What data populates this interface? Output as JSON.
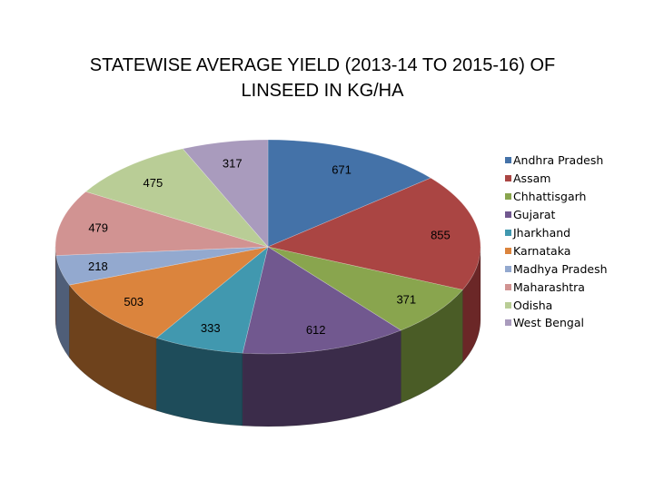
{
  "chart_data": {
    "type": "pie",
    "title": "STATEWISE AVERAGE YIELD (2013-14 TO 2015-16) OF LINSEED IN KG/HA",
    "slices": [
      {
        "label": "Andhra Pradesh",
        "value": 671,
        "color": "#4472A8",
        "side": "#2A4A70"
      },
      {
        "label": "Assam",
        "value": 855,
        "color": "#AA4543",
        "side": "#6B2727"
      },
      {
        "label": "Chhattisgarh",
        "value": 371,
        "color": "#89A54E",
        "side": "#4A5C26"
      },
      {
        "label": "Gujarat",
        "value": 612,
        "color": "#71588F",
        "side": "#3B2C4A"
      },
      {
        "label": "Jharkhand",
        "value": 333,
        "color": "#4198AF",
        "side": "#1E4C5A"
      },
      {
        "label": "Karnataka",
        "value": 503,
        "color": "#DB843D",
        "side": "#6E421C"
      },
      {
        "label": "Madhya Pradesh",
        "value": 218,
        "color": "#93A9CF",
        "side": "#4F5E78"
      },
      {
        "label": "Maharashtra",
        "value": 479,
        "color": "#D19392",
        "side": "#7A5050"
      },
      {
        "label": "Odisha",
        "value": 475,
        "color": "#B9CD96",
        "side": "#6E7A56"
      },
      {
        "label": "West Bengal",
        "value": 317,
        "color": "#A99BBD",
        "side": "#5E5570"
      }
    ],
    "legend_position": "right"
  }
}
